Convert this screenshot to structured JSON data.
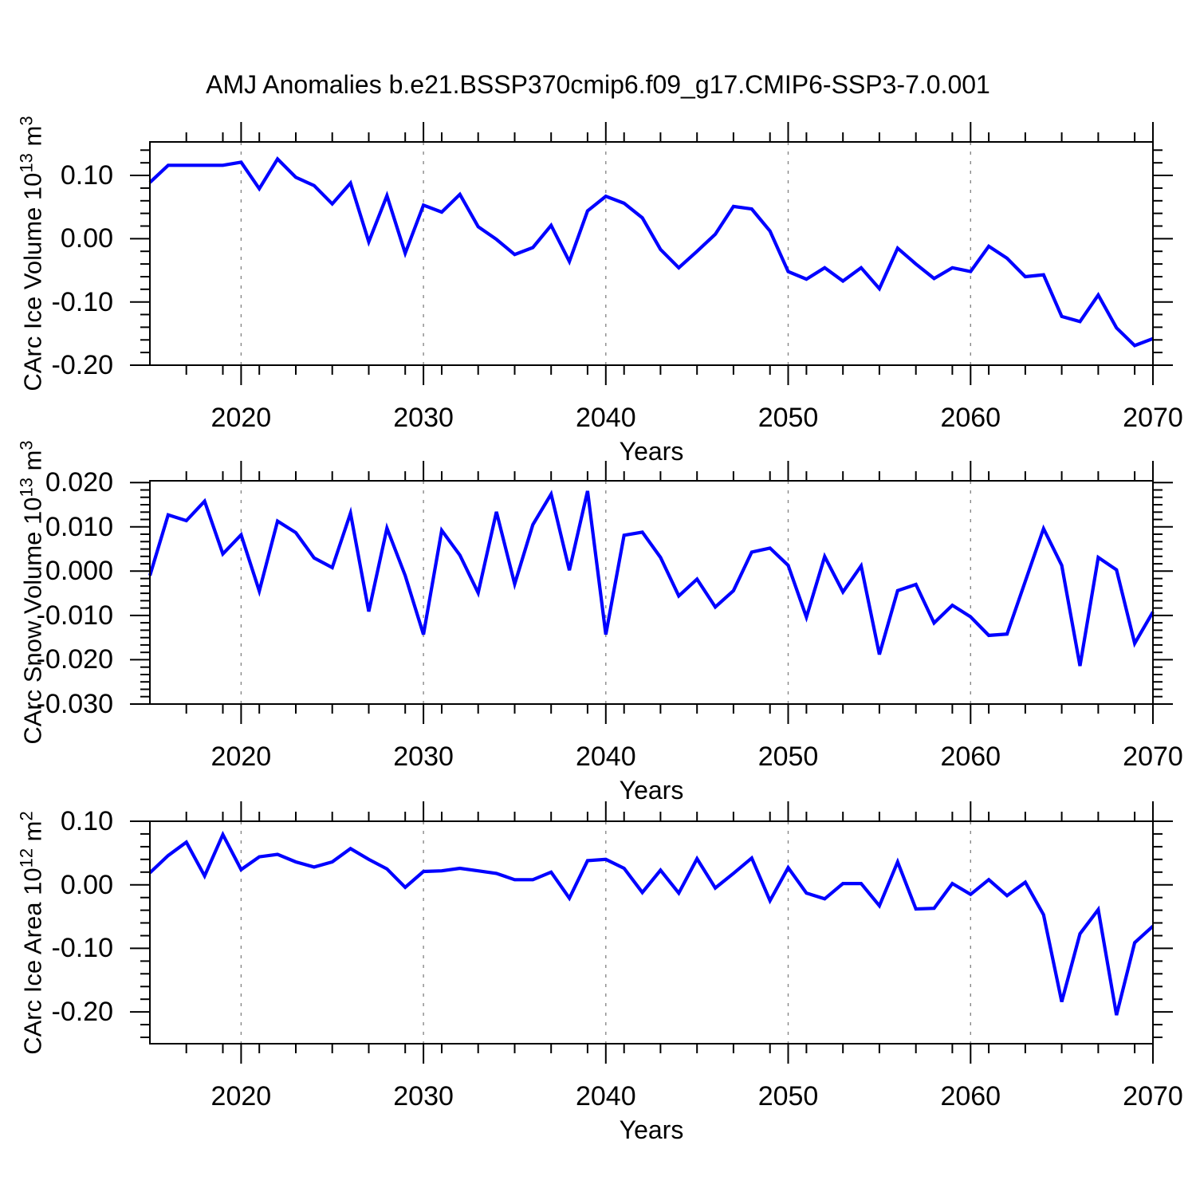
{
  "title": "AMJ Anomalies b.e21.BSSP370cmip6.f09_g17.CMIP6-SSP3-7.0.001",
  "colors": {
    "background": "#ffffff",
    "line": "#0000ff",
    "frame": "#000000",
    "gridline": "#888888",
    "text": "#000000"
  },
  "x_axis": {
    "label": "Years",
    "range": [
      2015,
      2070
    ],
    "major_ticks": [
      2020,
      2030,
      2040,
      2050,
      2060,
      2070
    ],
    "major_tick_labels": [
      "2020",
      "2030",
      "2040",
      "2050",
      "2060",
      "2070"
    ],
    "minor_tick_step_years": 2,
    "gridline_years": [
      2020,
      2030,
      2040,
      2050,
      2060
    ]
  },
  "years": [
    2015,
    2016,
    2017,
    2018,
    2019,
    2020,
    2021,
    2022,
    2023,
    2024,
    2025,
    2026,
    2027,
    2028,
    2029,
    2030,
    2031,
    2032,
    2033,
    2034,
    2035,
    2036,
    2037,
    2038,
    2039,
    2040,
    2041,
    2042,
    2043,
    2044,
    2045,
    2046,
    2047,
    2048,
    2049,
    2050,
    2051,
    2052,
    2053,
    2054,
    2055,
    2056,
    2057,
    2058,
    2059,
    2060,
    2061,
    2062,
    2063,
    2064,
    2065,
    2066,
    2067,
    2068,
    2069,
    2070
  ],
  "chart_data": [
    {
      "type": "line",
      "id": "ice-volume",
      "ylabel": "CArc Ice Volume 10^13 m^3",
      "ylabel_parts": [
        {
          "t": "CArc Ice Volume 10"
        },
        {
          "t": "13",
          "sup": true
        },
        {
          "t": " m"
        },
        {
          "t": "3",
          "sup": true
        }
      ],
      "xlabel": "Years",
      "ylim": [
        -0.2,
        0.153
      ],
      "y_major_ticks": [
        0.1,
        0.0,
        -0.1,
        -0.2
      ],
      "y_major_labels": [
        "0.10",
        "0.00",
        "-0.10",
        "-0.20"
      ],
      "y_minor_step": 0.02,
      "y_major_step": 0.1,
      "grid": "x-dashed",
      "legend": "none",
      "values": [
        0.089,
        0.116,
        0.116,
        0.116,
        0.116,
        0.121,
        0.079,
        0.126,
        0.097,
        0.084,
        0.055,
        0.088,
        -0.005,
        0.068,
        -0.023,
        0.053,
        0.042,
        0.07,
        0.019,
        -0.001,
        -0.025,
        -0.014,
        0.021,
        -0.036,
        0.044,
        0.067,
        0.056,
        0.033,
        -0.017,
        -0.046,
        -0.02,
        0.007,
        0.051,
        0.047,
        0.012,
        -0.052,
        -0.064,
        -0.046,
        -0.067,
        -0.046,
        -0.079,
        -0.015,
        -0.04,
        -0.063,
        -0.046,
        -0.052,
        -0.012,
        -0.031,
        -0.06,
        -0.057,
        -0.123,
        -0.131,
        -0.089,
        -0.141,
        -0.169,
        -0.158
      ]
    },
    {
      "type": "line",
      "id": "snow-volume",
      "ylabel": "CArc Snow Volume 10^13 m^3",
      "ylabel_parts": [
        {
          "t": "CArc Snow Volume 10"
        },
        {
          "t": "13",
          "sup": true
        },
        {
          "t": " m"
        },
        {
          "t": "3",
          "sup": true
        }
      ],
      "xlabel": "Years",
      "ylim": [
        -0.03,
        0.0204
      ],
      "y_major_ticks": [
        0.02,
        0.01,
        0.0,
        -0.01,
        -0.02,
        -0.03
      ],
      "y_major_labels": [
        "0.020",
        "0.010",
        "0.000",
        "-0.010",
        "-0.020",
        "-0.030"
      ],
      "y_minor_step": 0.0016666667,
      "y_major_step": 0.01,
      "grid": "x-dashed",
      "legend": "none",
      "values": [
        -0.001,
        0.0127,
        0.0114,
        0.0158,
        0.0039,
        0.0082,
        -0.0045,
        0.0113,
        0.0087,
        0.003,
        0.0008,
        0.0131,
        -0.0091,
        0.0097,
        -0.001,
        -0.0143,
        0.0092,
        0.0036,
        -0.0049,
        0.0134,
        -0.0029,
        0.0105,
        0.0174,
        0.0002,
        0.0181,
        -0.0143,
        0.0081,
        0.0088,
        0.0031,
        -0.0056,
        -0.0018,
        -0.0081,
        -0.0044,
        0.0043,
        0.0052,
        0.0013,
        -0.0104,
        0.0033,
        -0.0047,
        0.0012,
        -0.0188,
        -0.0044,
        -0.003,
        -0.0117,
        -0.0077,
        -0.0103,
        -0.0145,
        -0.0142,
        -0.0023,
        0.0096,
        0.0013,
        -0.0214,
        0.0031,
        0.0003,
        -0.0163,
        -0.0092
      ]
    },
    {
      "type": "line",
      "id": "ice-area",
      "ylabel": "CArc Ice Area 10^12 m^2",
      "ylabel_parts": [
        {
          "t": "CArc Ice Area 10"
        },
        {
          "t": "12",
          "sup": true
        },
        {
          "t": " m"
        },
        {
          "t": "2",
          "sup": true
        }
      ],
      "xlabel": "Years",
      "ylim": [
        -0.25,
        0.1
      ],
      "y_major_ticks": [
        0.1,
        0.0,
        -0.1,
        -0.2
      ],
      "y_major_labels": [
        "0.10",
        "0.00",
        "-0.10",
        "-0.20"
      ],
      "y_minor_step": 0.02,
      "y_major_step": 0.1,
      "grid": "x-dashed",
      "legend": "none",
      "values": [
        0.019,
        0.046,
        0.067,
        0.014,
        0.079,
        0.024,
        0.044,
        0.048,
        0.036,
        0.028,
        0.036,
        0.057,
        0.04,
        0.025,
        -0.004,
        0.021,
        0.022,
        0.026,
        0.022,
        0.018,
        0.008,
        0.008,
        0.02,
        -0.021,
        0.038,
        0.04,
        0.026,
        -0.012,
        0.023,
        -0.013,
        0.041,
        -0.005,
        0.018,
        0.042,
        -0.025,
        0.027,
        -0.013,
        -0.022,
        0.002,
        0.002,
        -0.033,
        0.036,
        -0.038,
        -0.037,
        0.002,
        -0.015,
        0.008,
        -0.017,
        0.004,
        -0.047,
        -0.184,
        -0.077,
        -0.039,
        -0.205,
        -0.091,
        -0.065
      ]
    }
  ]
}
